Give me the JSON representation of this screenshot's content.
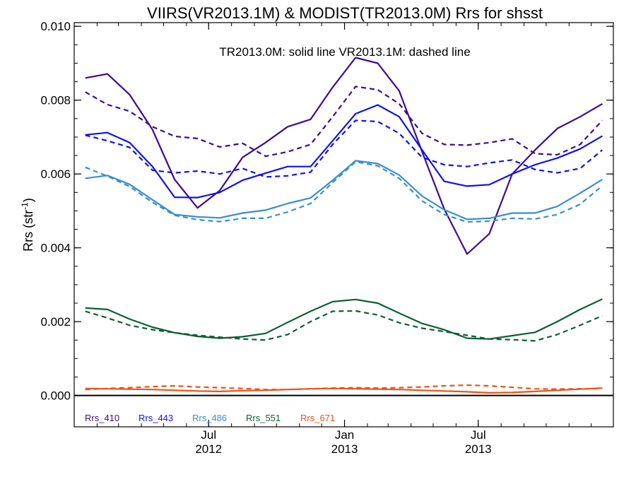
{
  "chart_data": {
    "type": "line",
    "title": "VIIRS(VR2013.1M) & MODIST(TR2013.0M)  Rrs for shsst",
    "annotation": "TR2013.0M: solid line   VR2013.1M: dashed line",
    "ylabel_main": "Rrs (str",
    "ylabel_sup": "-1",
    "ylabel_tail": ")",
    "ylim": [
      -0.00085,
      0.0101
    ],
    "yticks": [
      {
        "value": 0.0,
        "label": "0.000"
      },
      {
        "value": 0.002,
        "label": "0.002"
      },
      {
        "value": 0.004,
        "label": "0.004"
      },
      {
        "value": 0.006,
        "label": "0.006"
      },
      {
        "value": 0.008,
        "label": "0.008"
      },
      {
        "value": 0.01,
        "label": "0.010"
      }
    ],
    "x_range": [
      "2012-01-01",
      "2013-12-31"
    ],
    "x": [
      "2012-01-16",
      "2012-02-15",
      "2012-03-16",
      "2012-04-16",
      "2012-05-16",
      "2012-06-16",
      "2012-07-16",
      "2012-08-16",
      "2012-09-16",
      "2012-10-16",
      "2012-11-16",
      "2012-12-16",
      "2013-01-16",
      "2013-02-15",
      "2013-03-16",
      "2013-04-16",
      "2013-05-16",
      "2013-06-16",
      "2013-07-16",
      "2013-08-16",
      "2013-09-16",
      "2013-10-16",
      "2013-11-16",
      "2013-12-16"
    ],
    "xticks": [
      {
        "date": "2012-07-01",
        "month": "Jul",
        "year": "2012"
      },
      {
        "date": "2013-01-01",
        "month": "Jan",
        "year": "2013"
      },
      {
        "date": "2013-07-01",
        "month": "Jul",
        "year": "2013"
      }
    ],
    "zero_line": 0.0,
    "series": [
      {
        "name": "Rrs_410",
        "color": "#3a0e8c",
        "style": "solid",
        "values": [
          0.0086,
          0.00871,
          0.00815,
          0.0072,
          0.00585,
          0.00508,
          0.00555,
          0.00645,
          0.00685,
          0.00728,
          0.00748,
          0.00835,
          0.00915,
          0.009,
          0.00825,
          0.0066,
          0.00505,
          0.00383,
          0.00438,
          0.006,
          0.00665,
          0.00723,
          0.00755,
          0.0079
        ]
      },
      {
        "name": "Rrs_410",
        "color": "#3a0e8c",
        "style": "dashed",
        "values": [
          0.00822,
          0.00788,
          0.0077,
          0.00728,
          0.00702,
          0.00696,
          0.00673,
          0.00683,
          0.00648,
          0.0066,
          0.0068,
          0.00755,
          0.00837,
          0.00828,
          0.0079,
          0.0071,
          0.0068,
          0.00678,
          0.00685,
          0.00695,
          0.00655,
          0.00652,
          0.0068,
          0.00745
        ]
      },
      {
        "name": "Rrs_443",
        "color": "#1212e6",
        "style": "solid",
        "values": [
          0.00706,
          0.00712,
          0.00685,
          0.0062,
          0.00537,
          0.00536,
          0.0055,
          0.00583,
          0.00602,
          0.0062,
          0.0062,
          0.0069,
          0.00763,
          0.00787,
          0.00755,
          0.00665,
          0.0058,
          0.00567,
          0.00571,
          0.006,
          0.00625,
          0.00643,
          0.00668,
          0.00703
        ]
      },
      {
        "name": "Rrs_443",
        "color": "#1212e6",
        "style": "dashed",
        "values": [
          0.00705,
          0.0069,
          0.00672,
          0.0061,
          0.00603,
          0.00608,
          0.006,
          0.00615,
          0.00592,
          0.00595,
          0.00605,
          0.0068,
          0.00745,
          0.00742,
          0.0071,
          0.00645,
          0.00625,
          0.0062,
          0.0063,
          0.00638,
          0.00612,
          0.00603,
          0.00615,
          0.00665
        ]
      },
      {
        "name": "Rrs_486",
        "color": "#3a8ecb",
        "style": "solid",
        "values": [
          0.00588,
          0.00596,
          0.00572,
          0.0053,
          0.0049,
          0.00484,
          0.00481,
          0.00494,
          0.00502,
          0.0052,
          0.00535,
          0.00583,
          0.00636,
          0.00628,
          0.00597,
          0.0054,
          0.00503,
          0.00477,
          0.0048,
          0.00494,
          0.00494,
          0.00512,
          0.00548,
          0.00585
        ]
      },
      {
        "name": "Rrs_486",
        "color": "#3a8ecb",
        "style": "dashed",
        "values": [
          0.00618,
          0.00594,
          0.00566,
          0.00523,
          0.00488,
          0.00476,
          0.00471,
          0.0048,
          0.0048,
          0.00497,
          0.0052,
          0.00577,
          0.00633,
          0.00622,
          0.00588,
          0.00527,
          0.0049,
          0.0047,
          0.00472,
          0.0048,
          0.00478,
          0.0049,
          0.00518,
          0.00568
        ]
      },
      {
        "name": "Rrs_551",
        "color": "#0e5e32",
        "style": "solid",
        "values": [
          0.00237,
          0.00233,
          0.00207,
          0.00185,
          0.0017,
          0.0016,
          0.00155,
          0.00159,
          0.00168,
          0.00198,
          0.00228,
          0.00254,
          0.0026,
          0.0025,
          0.00223,
          0.00195,
          0.00178,
          0.00155,
          0.00153,
          0.00162,
          0.00171,
          0.002,
          0.00233,
          0.00261
        ]
      },
      {
        "name": "Rrs_551",
        "color": "#0e5e32",
        "style": "dashed",
        "values": [
          0.00228,
          0.0021,
          0.0019,
          0.00178,
          0.0017,
          0.00163,
          0.00158,
          0.00153,
          0.0015,
          0.00165,
          0.002,
          0.00228,
          0.00229,
          0.00218,
          0.00197,
          0.00182,
          0.00173,
          0.00163,
          0.00153,
          0.00151,
          0.00148,
          0.00165,
          0.0019,
          0.00216
        ]
      },
      {
        "name": "Rrs_671",
        "color": "#e5561a",
        "style": "solid",
        "values": [
          0.00019,
          0.00018,
          0.00017,
          0.00016,
          0.00014,
          0.00012,
          0.00011,
          0.00013,
          0.00014,
          0.00016,
          0.00018,
          0.00019,
          0.00018,
          0.00017,
          0.00016,
          0.00014,
          0.00012,
          0.0001,
          7e-05,
          8e-05,
          0.00011,
          0.00014,
          0.00017,
          0.0002
        ]
      },
      {
        "name": "Rrs_671",
        "color": "#e5561a",
        "style": "dashed",
        "values": [
          0.00016,
          0.00019,
          0.00021,
          0.00024,
          0.00026,
          0.00023,
          0.00021,
          0.00019,
          0.00016,
          0.00016,
          0.00018,
          0.0002,
          0.00021,
          0.0002,
          0.00021,
          0.00023,
          0.00026,
          0.00028,
          0.00026,
          0.00022,
          0.00018,
          0.00017,
          0.00018,
          0.00019
        ]
      }
    ],
    "legend": [
      {
        "label": "Rrs_410",
        "color": "#3a0e8c"
      },
      {
        "label": "Rrs_443",
        "color": "#1212e6"
      },
      {
        "label": "Rrs_486",
        "color": "#3a8ecb"
      },
      {
        "label": "Rrs_551",
        "color": "#0e5e32"
      },
      {
        "label": "Rrs_671",
        "color": "#e5561a"
      }
    ],
    "legend_position": "bottom-left"
  }
}
